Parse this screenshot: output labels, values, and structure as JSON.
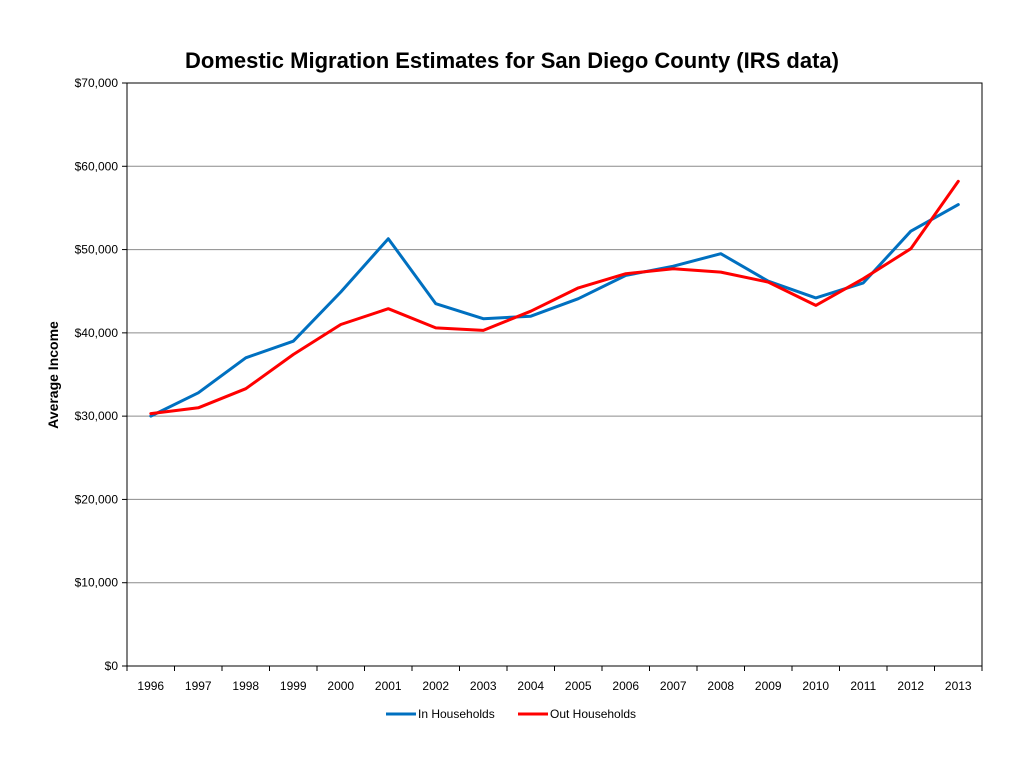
{
  "chart_data": {
    "type": "line",
    "title": "Domestic Migration Estimates for San Diego County (IRS data)",
    "xlabel": "",
    "ylabel": "Average Income",
    "ylim": [
      0,
      70000
    ],
    "ytick_values": [
      0,
      10000,
      20000,
      30000,
      40000,
      50000,
      60000,
      70000
    ],
    "ytick_labels": [
      "$0",
      "$10,000",
      "$20,000",
      "$30,000",
      "$40,000",
      "$50,000",
      "$60,000",
      "$70,000"
    ],
    "categories": [
      "1996",
      "1997",
      "1998",
      "1999",
      "2000",
      "2001",
      "2002",
      "2003",
      "2004",
      "2005",
      "2006",
      "2007",
      "2008",
      "2009",
      "2010",
      "2011",
      "2012",
      "2013"
    ],
    "grid": true,
    "legend_position": "bottom",
    "series": [
      {
        "name": "In Households",
        "color": "#0070c0",
        "values": [
          30000,
          32800,
          37000,
          39000,
          44900,
          51300,
          43500,
          41700,
          42000,
          44100,
          46900,
          48000,
          49500,
          46200,
          44200,
          46000,
          52200,
          55400
        ]
      },
      {
        "name": "Out Households",
        "color": "#ff0000",
        "values": [
          30300,
          31000,
          33300,
          37400,
          41000,
          42900,
          40600,
          40300,
          42600,
          45400,
          47100,
          47700,
          47300,
          46100,
          43300,
          46500,
          50100,
          58200
        ]
      }
    ]
  }
}
